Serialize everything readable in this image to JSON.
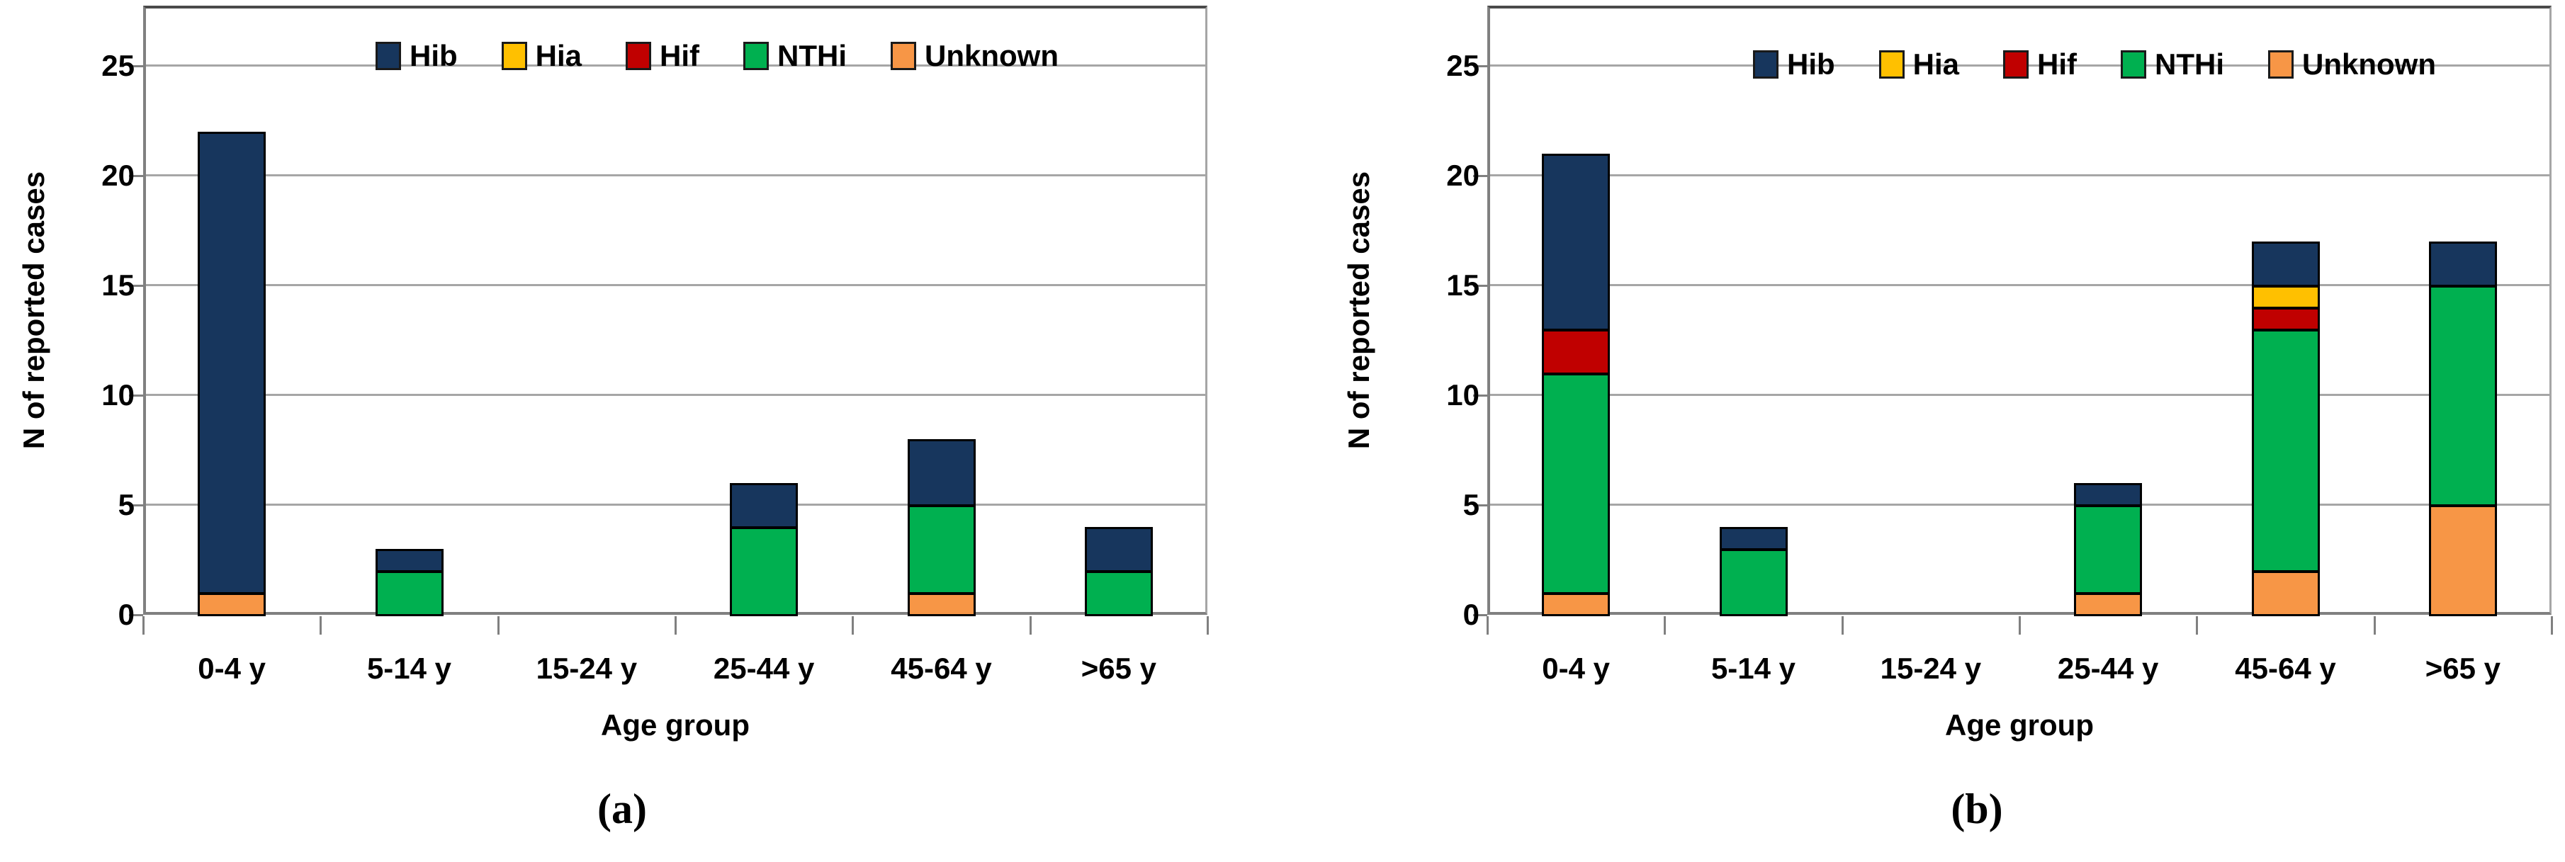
{
  "figure": {
    "panels": [
      "a",
      "b"
    ]
  },
  "colors": {
    "Hib": "#17365d",
    "Hia": "#ffc000",
    "Hif": "#c00000",
    "NTHi": "#00b050",
    "Unknown": "#f79646",
    "gridline": "#a6a6a6",
    "axis": "#808080",
    "bar_border": "#000000"
  },
  "chart_data": [
    {
      "panel": "a",
      "type": "bar",
      "stacked": true,
      "caption": "(a)",
      "xlabel": "Age group",
      "ylabel": "N of reported cases",
      "ylim": [
        0,
        25
      ],
      "yticks": [
        0,
        5,
        10,
        15,
        20,
        25
      ],
      "grid": true,
      "legend_position": "top-right-inside",
      "categories": [
        "0-4 y",
        "5-14 y",
        "15-24 y",
        "25-44 y",
        "45-64 y",
        ">65 y"
      ],
      "legend": [
        "Hib",
        "Hia",
        "Hif",
        "NTHi",
        "Unknown"
      ],
      "stack_order_bottom_to_top": [
        "Unknown",
        "NTHi",
        "Hif",
        "Hia",
        "Hib"
      ],
      "series": [
        {
          "name": "Hib",
          "color": "#17365d",
          "values": [
            21,
            1,
            0,
            2,
            3,
            2
          ]
        },
        {
          "name": "Hia",
          "color": "#ffc000",
          "values": [
            0,
            0,
            0,
            0,
            0,
            0
          ]
        },
        {
          "name": "Hif",
          "color": "#c00000",
          "values": [
            0,
            0,
            0,
            0,
            0,
            0
          ]
        },
        {
          "name": "NTHi",
          "color": "#00b050",
          "values": [
            0,
            2,
            0,
            4,
            4,
            2
          ]
        },
        {
          "name": "Unknown",
          "color": "#f79646",
          "values": [
            1,
            0,
            0,
            0,
            1,
            0
          ]
        }
      ],
      "totals": [
        22,
        3,
        0,
        6,
        8,
        4
      ]
    },
    {
      "panel": "b",
      "type": "bar",
      "stacked": true,
      "caption": "(b)",
      "xlabel": "Age group",
      "ylabel": "N of reported cases",
      "ylim": [
        0,
        25
      ],
      "yticks": [
        0,
        5,
        10,
        15,
        20,
        25
      ],
      "grid": true,
      "legend_position": "top-right-inside",
      "categories": [
        "0-4 y",
        "5-14 y",
        "15-24 y",
        "25-44 y",
        "45-64 y",
        ">65 y"
      ],
      "legend": [
        "Hib",
        "Hia",
        "Hif",
        "NTHi",
        "Unknown"
      ],
      "stack_order_bottom_to_top": [
        "Unknown",
        "NTHi",
        "Hif",
        "Hia",
        "Hib"
      ],
      "series": [
        {
          "name": "Hib",
          "color": "#17365d",
          "values": [
            8,
            1,
            0,
            1,
            2,
            2
          ]
        },
        {
          "name": "Hia",
          "color": "#ffc000",
          "values": [
            0,
            0,
            0,
            0,
            1,
            0
          ]
        },
        {
          "name": "Hif",
          "color": "#c00000",
          "values": [
            2,
            0,
            0,
            0,
            1,
            0
          ]
        },
        {
          "name": "NTHi",
          "color": "#00b050",
          "values": [
            10,
            3,
            0,
            4,
            11,
            10
          ]
        },
        {
          "name": "Unknown",
          "color": "#f79646",
          "values": [
            1,
            0,
            0,
            1,
            2,
            5
          ]
        }
      ],
      "totals": [
        21,
        4,
        0,
        6,
        17,
        17
      ]
    }
  ]
}
